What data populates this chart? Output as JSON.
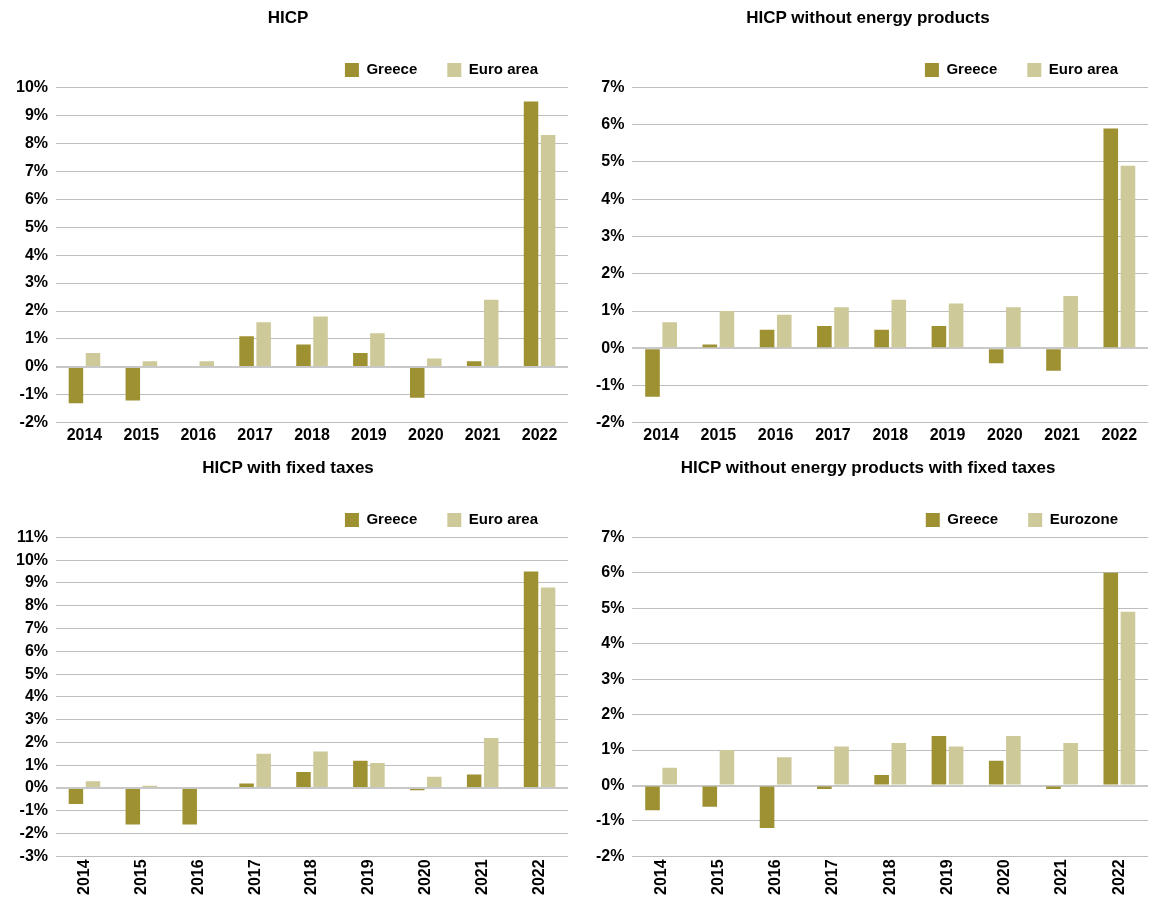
{
  "chart_data": [
    {
      "type": "bar",
      "title": "HICP",
      "categories": [
        "2014",
        "2015",
        "2016",
        "2017",
        "2018",
        "2019",
        "2020",
        "2021",
        "2022"
      ],
      "series": [
        {
          "name": "Greece",
          "color": "#9e9132",
          "values": [
            -1.3,
            -1.2,
            0.0,
            1.1,
            0.8,
            0.5,
            -1.1,
            0.2,
            9.5
          ]
        },
        {
          "name": "Euro area",
          "color": "#cdc998",
          "values": [
            0.5,
            0.2,
            0.2,
            1.6,
            1.8,
            1.2,
            0.3,
            2.4,
            8.3
          ]
        }
      ],
      "ylim": [
        -2,
        10
      ],
      "yticks": [
        {
          "value": -2,
          "label": "-2%"
        },
        {
          "value": -1,
          "label": "-1%"
        },
        {
          "value": 0,
          "label": "0%"
        },
        {
          "value": 1,
          "label": "1%"
        },
        {
          "value": 2,
          "label": "2%"
        },
        {
          "value": 3,
          "label": "3%"
        },
        {
          "value": 4,
          "label": "4%"
        },
        {
          "value": 5,
          "label": "5%"
        },
        {
          "value": 6,
          "label": "6%"
        },
        {
          "value": 7,
          "label": "7%"
        },
        {
          "value": 8,
          "label": "8%"
        },
        {
          "value": 9,
          "label": "9%"
        },
        {
          "value": 10,
          "label": "10%"
        }
      ],
      "grid": "y",
      "legend": "top right"
    },
    {
      "type": "bar",
      "title": "HICP without energy products",
      "categories": [
        "2014",
        "2015",
        "2016",
        "2017",
        "2018",
        "2019",
        "2020",
        "2021",
        "2022"
      ],
      "series": [
        {
          "name": "Greece",
          "color": "#9e9132",
          "values": [
            -1.3,
            0.1,
            0.5,
            0.6,
            0.5,
            0.6,
            -0.4,
            -0.6,
            5.9
          ]
        },
        {
          "name": "Euro area",
          "color": "#cdc998",
          "values": [
            0.7,
            1.0,
            0.9,
            1.1,
            1.3,
            1.2,
            1.1,
            1.4,
            4.9
          ]
        }
      ],
      "ylim": [
        -2,
        7
      ],
      "yticks": [
        {
          "value": -2,
          "label": "-2%"
        },
        {
          "value": -1,
          "label": "-1%"
        },
        {
          "value": 0,
          "label": "0%"
        },
        {
          "value": 1,
          "label": "1%"
        },
        {
          "value": 2,
          "label": "2%"
        },
        {
          "value": 3,
          "label": "3%"
        },
        {
          "value": 4,
          "label": "4%"
        },
        {
          "value": 5,
          "label": "5%"
        },
        {
          "value": 6,
          "label": "6%"
        },
        {
          "value": 7,
          "label": "7%"
        }
      ],
      "grid": "y",
      "legend": "top right"
    },
    {
      "type": "bar",
      "title": "HICP with fixed taxes",
      "categories": [
        "2014",
        "2015",
        "2016",
        "2017",
        "2018",
        "2019",
        "2020",
        "2021",
        "2022"
      ],
      "series": [
        {
          "name": "Greece",
          "color": "#9e9132",
          "values": [
            -0.7,
            -1.6,
            -1.6,
            0.2,
            0.7,
            1.2,
            -0.1,
            0.6,
            9.5
          ]
        },
        {
          "name": "Euro area",
          "color": "#cdc998",
          "values": [
            0.3,
            0.1,
            0.0,
            1.5,
            1.6,
            1.1,
            0.5,
            2.2,
            8.8
          ]
        }
      ],
      "ylim": [
        -3,
        11
      ],
      "yticks": [
        {
          "value": -3,
          "label": "-3%"
        },
        {
          "value": -2,
          "label": "-2%"
        },
        {
          "value": -1,
          "label": "-1%"
        },
        {
          "value": 0,
          "label": "0%"
        },
        {
          "value": 1,
          "label": "1%"
        },
        {
          "value": 2,
          "label": "2%"
        },
        {
          "value": 3,
          "label": "3%"
        },
        {
          "value": 4,
          "label": "4%"
        },
        {
          "value": 5,
          "label": "5%"
        },
        {
          "value": 6,
          "label": "6%"
        },
        {
          "value": 7,
          "label": "7%"
        },
        {
          "value": 8,
          "label": "8%"
        },
        {
          "value": 9,
          "label": "9%"
        },
        {
          "value": 10,
          "label": "10%"
        },
        {
          "value": 11,
          "label": "11%"
        }
      ],
      "grid": "y",
      "legend": "top right"
    },
    {
      "type": "bar",
      "title": "HICP without energy products with fixed taxes",
      "categories": [
        "2014",
        "2015",
        "2016",
        "2017",
        "2018",
        "2019",
        "2020",
        "2021",
        "2022"
      ],
      "series": [
        {
          "name": "Greece",
          "color": "#9e9132",
          "values": [
            -0.7,
            -0.6,
            -1.2,
            -0.1,
            0.3,
            1.4,
            0.7,
            -0.1,
            6.0
          ]
        },
        {
          "name": "Eurozone",
          "color": "#cdc998",
          "values": [
            0.5,
            1.0,
            0.8,
            1.1,
            1.2,
            1.1,
            1.4,
            1.2,
            4.9
          ]
        }
      ],
      "ylim": [
        -2,
        7
      ],
      "yticks": [
        {
          "value": -2,
          "label": "-2%"
        },
        {
          "value": -1,
          "label": "-1%"
        },
        {
          "value": 0,
          "label": "0%"
        },
        {
          "value": 1,
          "label": "1%"
        },
        {
          "value": 2,
          "label": "2%"
        },
        {
          "value": 3,
          "label": "3%"
        },
        {
          "value": 4,
          "label": "4%"
        },
        {
          "value": 5,
          "label": "5%"
        },
        {
          "value": 6,
          "label": "6%"
        },
        {
          "value": 7,
          "label": "7%"
        }
      ],
      "grid": "y",
      "legend": "top right"
    }
  ]
}
